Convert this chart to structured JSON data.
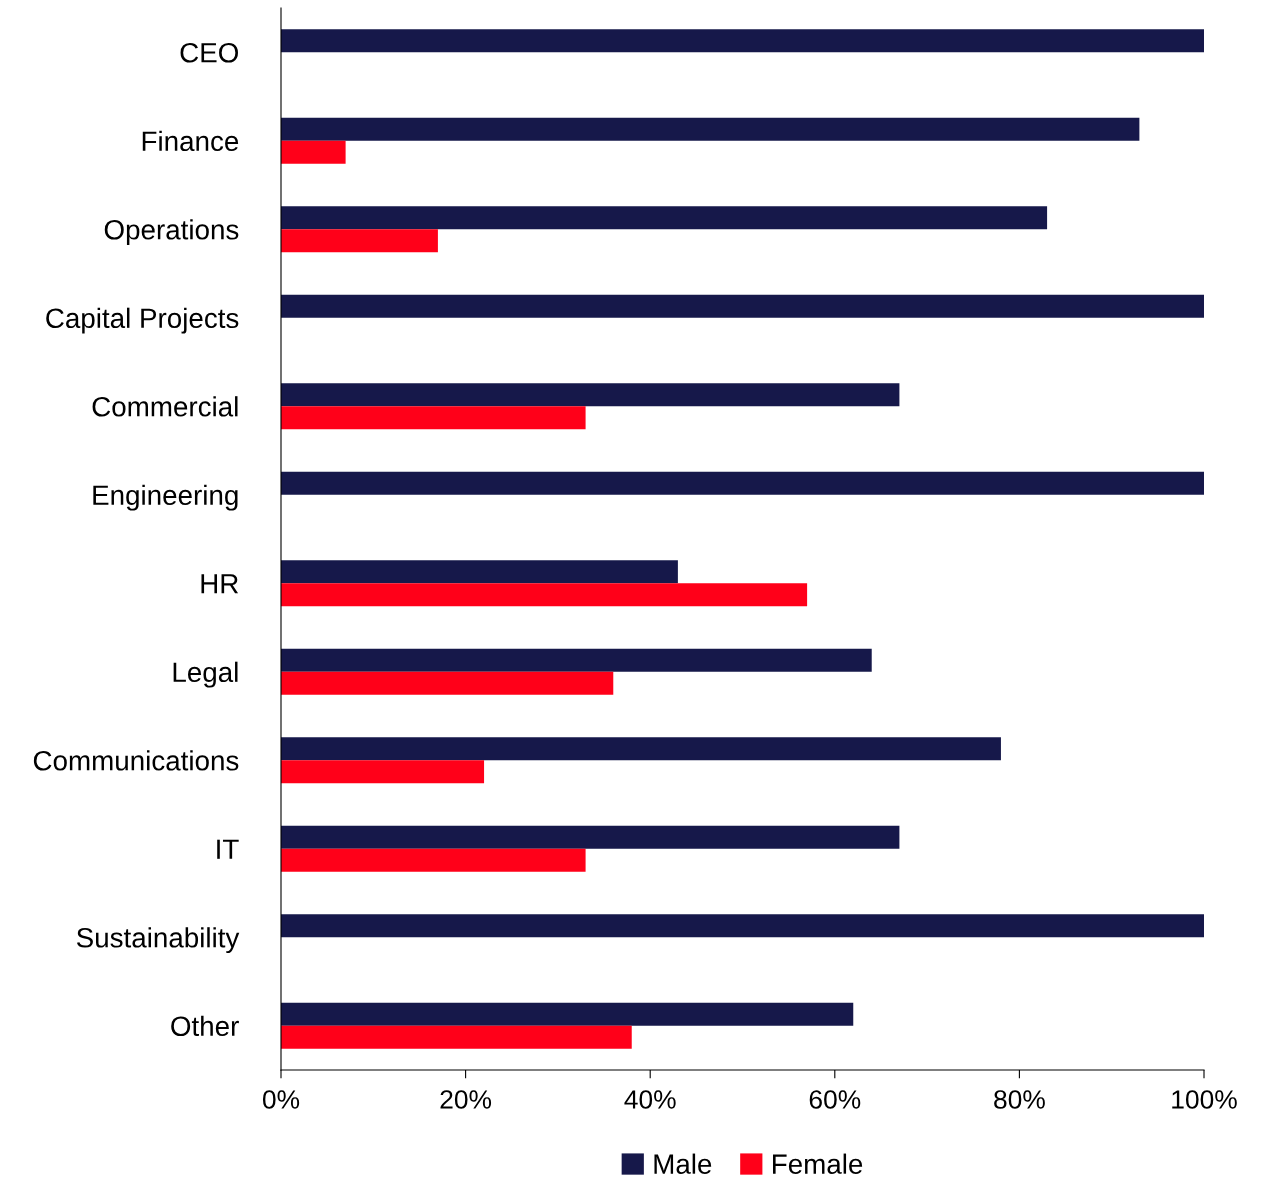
{
  "chart_data": {
    "type": "bar",
    "orientation": "horizontal",
    "categories": [
      "CEO",
      "Finance",
      "Operations",
      "Capital Projects",
      "Commercial",
      "Engineering",
      "HR",
      "Legal",
      "Communications",
      "IT",
      "Sustainability",
      "Other"
    ],
    "series": [
      {
        "name": "Male",
        "color": "#16184a",
        "values": [
          100,
          93,
          83,
          100,
          67,
          100,
          43,
          64,
          78,
          67,
          100,
          62
        ]
      },
      {
        "name": "Female",
        "color": "#ff0019",
        "values": [
          0,
          7,
          17,
          0,
          33,
          0,
          57,
          36,
          22,
          33,
          0,
          38
        ]
      }
    ],
    "xlim": [
      0,
      100
    ],
    "xticks": [
      {
        "value": 0,
        "label": "0%"
      },
      {
        "value": 20,
        "label": "20%"
      },
      {
        "value": 40,
        "label": "40%"
      },
      {
        "value": 60,
        "label": "60%"
      },
      {
        "value": 80,
        "label": "80%"
      },
      {
        "value": 100,
        "label": "100%"
      }
    ],
    "grid": false,
    "legend": "bottom"
  }
}
